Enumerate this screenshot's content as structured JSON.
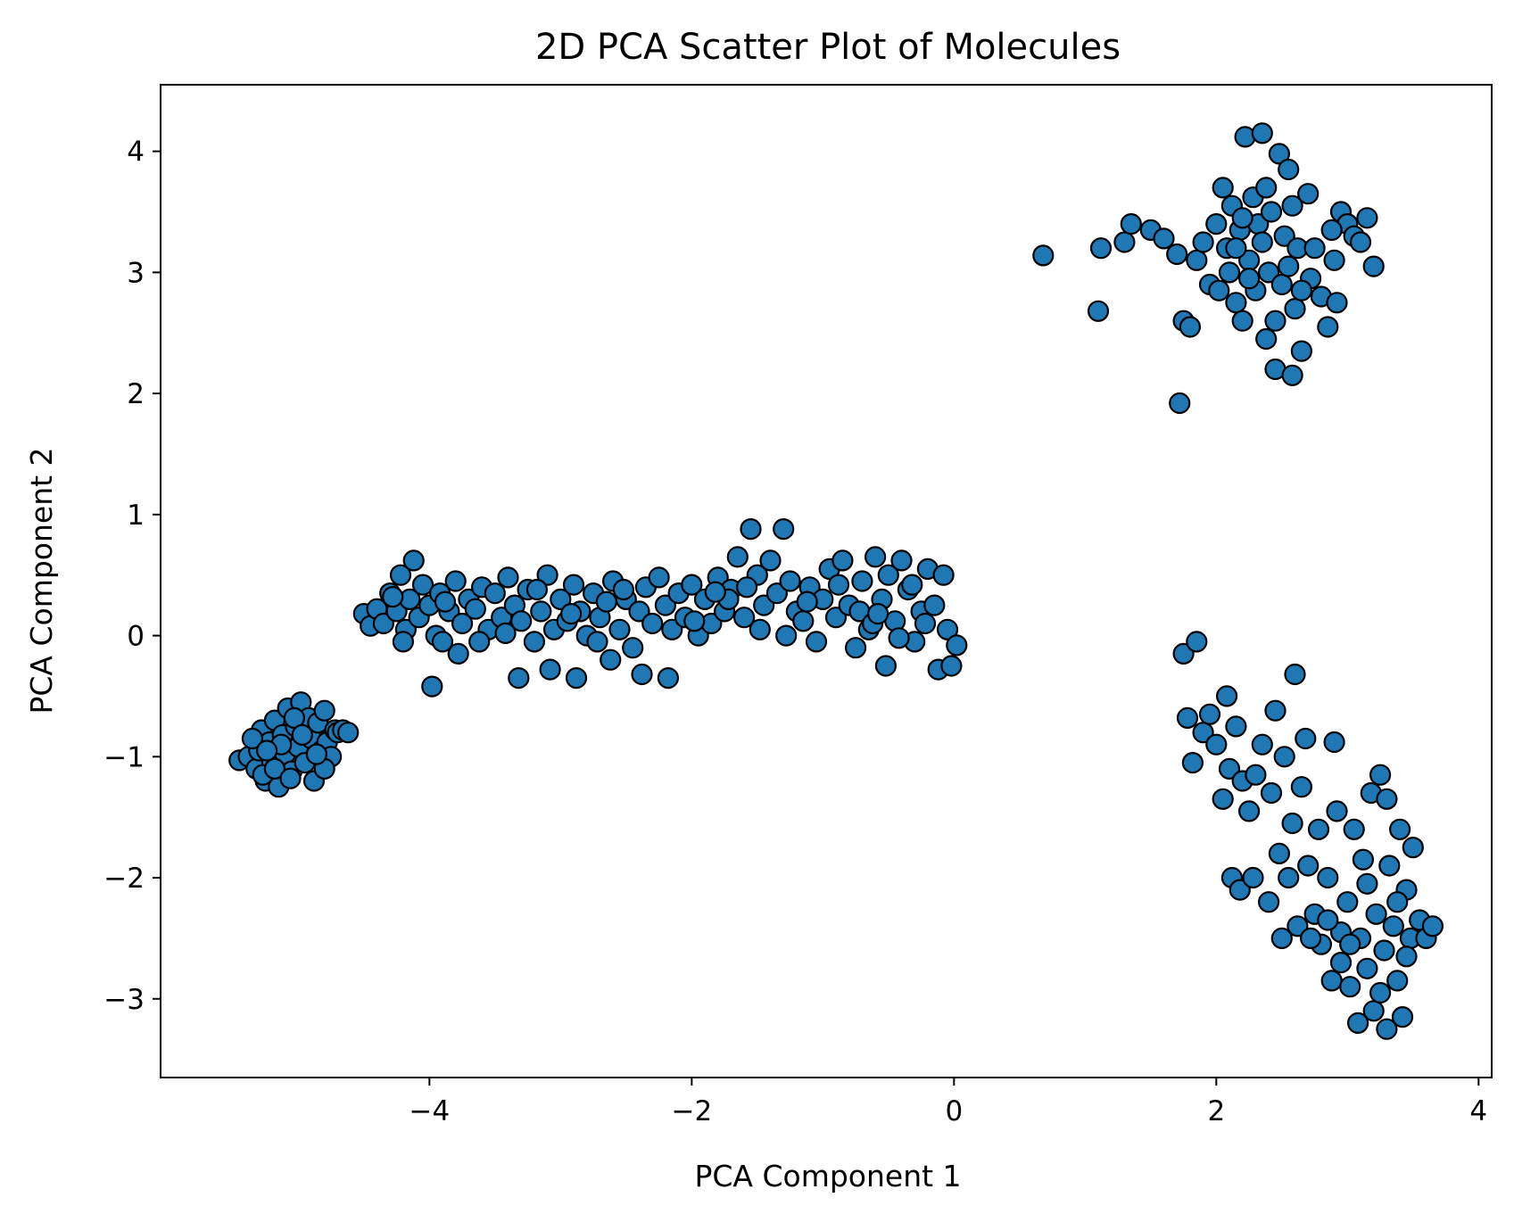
{
  "chart_data": {
    "type": "scatter",
    "title": "2D PCA Scatter Plot of Molecules",
    "xlabel": "PCA Component 1",
    "ylabel": "PCA Component 2",
    "xlim": [
      -6.05,
      4.1
    ],
    "ylim": [
      -3.65,
      4.55
    ],
    "xticks": [
      -4,
      -2,
      0,
      2,
      4
    ],
    "yticks": [
      -3,
      -2,
      -1,
      0,
      1,
      2,
      3,
      4
    ],
    "xtick_labels": [
      "−4",
      "−2",
      "0",
      "2",
      "4"
    ],
    "ytick_labels": [
      "−3",
      "−2",
      "−1",
      "0",
      "1",
      "2",
      "3",
      "4"
    ],
    "grid": false,
    "legend": "none",
    "marker_color": "#1f77b4",
    "marker_edge": "#000000",
    "series": [
      {
        "points": [
          [
            -5.45,
            -1.03
          ],
          [
            -5.38,
            -1.0
          ],
          [
            -5.32,
            -1.1
          ],
          [
            -5.3,
            -0.95
          ],
          [
            -5.28,
            -0.78
          ],
          [
            -5.25,
            -1.2
          ],
          [
            -5.22,
            -0.88
          ],
          [
            -5.2,
            -1.05
          ],
          [
            -5.18,
            -0.7
          ],
          [
            -5.15,
            -1.25
          ],
          [
            -5.12,
            -0.82
          ],
          [
            -5.1,
            -0.98
          ],
          [
            -5.08,
            -0.6
          ],
          [
            -5.05,
            -1.12
          ],
          [
            -5.02,
            -0.75
          ],
          [
            -5.0,
            -0.92
          ],
          [
            -4.98,
            -0.55
          ],
          [
            -4.95,
            -1.05
          ],
          [
            -4.92,
            -0.68
          ],
          [
            -4.9,
            -0.85
          ],
          [
            -4.88,
            -1.2
          ],
          [
            -4.85,
            -0.72
          ],
          [
            -4.82,
            -0.95
          ],
          [
            -4.8,
            -0.62
          ],
          [
            -4.78,
            -0.88
          ],
          [
            -4.75,
            -1.0
          ],
          [
            -4.72,
            -0.78
          ],
          [
            -4.7,
            -0.8
          ],
          [
            -4.66,
            -0.78
          ],
          [
            -4.62,
            -0.8
          ],
          [
            -4.8,
            -1.1
          ],
          [
            -5.35,
            -0.85
          ],
          [
            -5.27,
            -1.15
          ],
          [
            -5.13,
            -0.9
          ],
          [
            -5.03,
            -0.68
          ],
          [
            -4.97,
            -0.82
          ],
          [
            -5.18,
            -1.1
          ],
          [
            -5.24,
            -0.95
          ],
          [
            -4.86,
            -0.98
          ],
          [
            -5.06,
            -1.18
          ],
          [
            -4.5,
            0.18
          ],
          [
            -4.45,
            0.08
          ],
          [
            -4.4,
            0.22
          ],
          [
            -4.35,
            0.1
          ],
          [
            -4.3,
            0.35
          ],
          [
            -4.25,
            0.2
          ],
          [
            -4.22,
            0.5
          ],
          [
            -4.18,
            0.05
          ],
          [
            -4.15,
            0.3
          ],
          [
            -4.12,
            0.62
          ],
          [
            -4.08,
            0.15
          ],
          [
            -4.05,
            0.42
          ],
          [
            -4.0,
            0.25
          ],
          [
            -3.95,
            0.0
          ],
          [
            -3.92,
            0.35
          ],
          [
            -3.9,
            -0.05
          ],
          [
            -3.85,
            0.2
          ],
          [
            -3.8,
            0.45
          ],
          [
            -3.78,
            -0.15
          ],
          [
            -3.75,
            0.1
          ],
          [
            -3.7,
            0.3
          ],
          [
            -3.65,
            0.22
          ],
          [
            -3.6,
            0.4
          ],
          [
            -3.55,
            0.05
          ],
          [
            -3.5,
            0.35
          ],
          [
            -3.45,
            0.15
          ],
          [
            -3.4,
            0.48
          ],
          [
            -3.35,
            0.25
          ],
          [
            -3.3,
            0.12
          ],
          [
            -3.25,
            0.38
          ],
          [
            -3.2,
            -0.05
          ],
          [
            -3.15,
            0.2
          ],
          [
            -3.1,
            0.5
          ],
          [
            -3.05,
            0.05
          ],
          [
            -3.0,
            0.3
          ],
          [
            -2.95,
            0.12
          ],
          [
            -2.9,
            0.42
          ],
          [
            -2.85,
            0.2
          ],
          [
            -2.8,
            0.0
          ],
          [
            -2.75,
            0.35
          ],
          [
            -2.7,
            0.15
          ],
          [
            -2.65,
            0.28
          ],
          [
            -2.6,
            0.45
          ],
          [
            -2.55,
            0.05
          ],
          [
            -2.5,
            0.3
          ],
          [
            -2.45,
            -0.1
          ],
          [
            -2.4,
            0.2
          ],
          [
            -2.35,
            0.4
          ],
          [
            -2.3,
            0.1
          ],
          [
            -2.25,
            0.48
          ],
          [
            -2.2,
            0.25
          ],
          [
            -2.15,
            0.05
          ],
          [
            -2.1,
            0.35
          ],
          [
            -2.05,
            0.15
          ],
          [
            -2.0,
            0.42
          ],
          [
            -1.95,
            0.0
          ],
          [
            -1.9,
            0.3
          ],
          [
            -1.85,
            0.1
          ],
          [
            -1.8,
            0.48
          ],
          [
            -1.75,
            0.2
          ],
          [
            -1.7,
            0.38
          ],
          [
            -1.65,
            0.65
          ],
          [
            -1.6,
            0.15
          ],
          [
            -1.55,
            0.88
          ],
          [
            -1.5,
            0.5
          ],
          [
            -1.45,
            0.25
          ],
          [
            -1.4,
            0.62
          ],
          [
            -1.35,
            0.35
          ],
          [
            -1.3,
            0.88
          ],
          [
            -1.28,
            0.0
          ],
          [
            -1.25,
            0.45
          ],
          [
            -1.2,
            0.2
          ],
          [
            -1.15,
            0.12
          ],
          [
            -1.1,
            0.4
          ],
          [
            -1.05,
            -0.05
          ],
          [
            -1.0,
            0.3
          ],
          [
            -0.95,
            0.55
          ],
          [
            -0.9,
            0.15
          ],
          [
            -0.85,
            0.62
          ],
          [
            -0.8,
            0.25
          ],
          [
            -0.75,
            -0.1
          ],
          [
            -0.7,
            0.45
          ],
          [
            -0.65,
            0.05
          ],
          [
            -0.6,
            0.65
          ],
          [
            -0.55,
            0.3
          ],
          [
            -0.52,
            -0.25
          ],
          [
            -0.5,
            0.5
          ],
          [
            -0.45,
            0.12
          ],
          [
            -0.4,
            0.62
          ],
          [
            -0.35,
            0.38
          ],
          [
            -0.3,
            -0.05
          ],
          [
            -0.25,
            0.2
          ],
          [
            -0.2,
            0.55
          ],
          [
            -0.15,
            0.25
          ],
          [
            -0.12,
            -0.28
          ],
          [
            -0.08,
            0.5
          ],
          [
            -0.05,
            0.05
          ],
          [
            0.02,
            -0.08
          ],
          [
            -0.02,
            -0.25
          ],
          [
            -4.2,
            -0.05
          ],
          [
            -3.98,
            -0.42
          ],
          [
            -3.32,
            -0.35
          ],
          [
            -3.08,
            -0.28
          ],
          [
            -2.88,
            -0.35
          ],
          [
            -2.72,
            -0.05
          ],
          [
            -2.62,
            -0.2
          ],
          [
            -2.38,
            -0.32
          ],
          [
            -2.18,
            -0.35
          ],
          [
            -1.72,
            0.3
          ],
          [
            -1.58,
            0.4
          ],
          [
            -1.48,
            0.05
          ],
          [
            -0.72,
            0.2
          ],
          [
            -0.62,
            0.1
          ],
          [
            -0.42,
            -0.02
          ],
          [
            -3.62,
            -0.05
          ],
          [
            -3.88,
            0.28
          ],
          [
            -4.28,
            0.32
          ],
          [
            -2.92,
            0.18
          ],
          [
            -2.52,
            0.38
          ],
          [
            -1.98,
            0.12
          ],
          [
            -1.82,
            0.36
          ],
          [
            -1.12,
            0.28
          ],
          [
            -0.88,
            0.42
          ],
          [
            -0.58,
            0.18
          ],
          [
            -0.32,
            0.42
          ],
          [
            -0.22,
            0.1
          ],
          [
            -3.42,
            0.02
          ],
          [
            -3.18,
            0.38
          ],
          [
            1.1,
            2.68
          ],
          [
            0.68,
            3.14
          ],
          [
            1.12,
            3.2
          ],
          [
            1.3,
            3.25
          ],
          [
            1.35,
            3.4
          ],
          [
            1.5,
            3.35
          ],
          [
            1.6,
            3.28
          ],
          [
            1.7,
            3.15
          ],
          [
            1.75,
            2.6
          ],
          [
            1.8,
            2.55
          ],
          [
            1.72,
            1.92
          ],
          [
            1.85,
            3.1
          ],
          [
            1.9,
            3.25
          ],
          [
            1.95,
            2.9
          ],
          [
            2.0,
            3.4
          ],
          [
            2.02,
            2.85
          ],
          [
            2.05,
            3.7
          ],
          [
            2.08,
            3.2
          ],
          [
            2.1,
            3.0
          ],
          [
            2.12,
            3.55
          ],
          [
            2.15,
            2.75
          ],
          [
            2.18,
            3.35
          ],
          [
            2.2,
            2.6
          ],
          [
            2.22,
            4.12
          ],
          [
            2.25,
            3.1
          ],
          [
            2.28,
            3.62
          ],
          [
            2.3,
            2.85
          ],
          [
            2.32,
            3.4
          ],
          [
            2.35,
            4.15
          ],
          [
            2.38,
            2.45
          ],
          [
            2.4,
            3.0
          ],
          [
            2.42,
            3.5
          ],
          [
            2.45,
            2.2
          ],
          [
            2.48,
            3.98
          ],
          [
            2.5,
            2.9
          ],
          [
            2.52,
            3.3
          ],
          [
            2.55,
            3.85
          ],
          [
            2.58,
            2.15
          ],
          [
            2.6,
            2.7
          ],
          [
            2.62,
            3.2
          ],
          [
            2.65,
            2.35
          ],
          [
            2.7,
            3.65
          ],
          [
            2.72,
            2.95
          ],
          [
            2.75,
            3.2
          ],
          [
            2.8,
            2.8
          ],
          [
            2.85,
            2.55
          ],
          [
            2.9,
            3.1
          ],
          [
            2.95,
            3.5
          ],
          [
            3.0,
            3.4
          ],
          [
            3.05,
            3.3
          ],
          [
            3.1,
            3.25
          ],
          [
            3.15,
            3.45
          ],
          [
            3.2,
            3.05
          ],
          [
            2.88,
            3.35
          ],
          [
            2.92,
            2.75
          ],
          [
            2.15,
            3.2
          ],
          [
            2.25,
            2.95
          ],
          [
            2.35,
            3.25
          ],
          [
            2.45,
            2.6
          ],
          [
            2.55,
            3.05
          ],
          [
            2.65,
            2.85
          ],
          [
            2.2,
            3.45
          ],
          [
            2.38,
            3.7
          ],
          [
            2.58,
            3.55
          ],
          [
            1.75,
            -0.15
          ],
          [
            1.85,
            -0.05
          ],
          [
            1.78,
            -0.68
          ],
          [
            1.82,
            -1.05
          ],
          [
            1.9,
            -0.8
          ],
          [
            1.95,
            -0.65
          ],
          [
            2.0,
            -0.9
          ],
          [
            2.05,
            -1.35
          ],
          [
            2.08,
            -0.5
          ],
          [
            2.1,
            -1.1
          ],
          [
            2.12,
            -2.0
          ],
          [
            2.15,
            -0.75
          ],
          [
            2.18,
            -2.1
          ],
          [
            2.2,
            -1.2
          ],
          [
            2.25,
            -1.45
          ],
          [
            2.28,
            -2.0
          ],
          [
            2.3,
            -1.15
          ],
          [
            2.35,
            -0.9
          ],
          [
            2.4,
            -2.2
          ],
          [
            2.42,
            -1.3
          ],
          [
            2.45,
            -0.62
          ],
          [
            2.48,
            -1.8
          ],
          [
            2.5,
            -2.5
          ],
          [
            2.52,
            -1.0
          ],
          [
            2.55,
            -2.0
          ],
          [
            2.58,
            -1.55
          ],
          [
            2.6,
            -0.32
          ],
          [
            2.62,
            -2.4
          ],
          [
            2.65,
            -1.25
          ],
          [
            2.68,
            -0.85
          ],
          [
            2.7,
            -1.9
          ],
          [
            2.75,
            -2.3
          ],
          [
            2.78,
            -1.6
          ],
          [
            2.8,
            -2.55
          ],
          [
            2.85,
            -2.0
          ],
          [
            2.88,
            -2.85
          ],
          [
            2.9,
            -0.88
          ],
          [
            2.92,
            -1.45
          ],
          [
            2.95,
            -2.45
          ],
          [
            3.0,
            -2.2
          ],
          [
            3.02,
            -2.9
          ],
          [
            3.05,
            -1.6
          ],
          [
            3.08,
            -3.2
          ],
          [
            3.1,
            -2.5
          ],
          [
            3.12,
            -1.85
          ],
          [
            3.15,
            -2.75
          ],
          [
            3.18,
            -1.3
          ],
          [
            3.2,
            -3.1
          ],
          [
            3.22,
            -2.3
          ],
          [
            3.25,
            -1.15
          ],
          [
            3.28,
            -2.6
          ],
          [
            3.3,
            -3.25
          ],
          [
            3.32,
            -1.9
          ],
          [
            3.35,
            -2.4
          ],
          [
            3.38,
            -2.85
          ],
          [
            3.4,
            -1.6
          ],
          [
            3.42,
            -3.15
          ],
          [
            3.45,
            -2.1
          ],
          [
            3.48,
            -2.5
          ],
          [
            3.5,
            -1.75
          ],
          [
            3.55,
            -2.35
          ],
          [
            3.6,
            -2.5
          ],
          [
            3.65,
            -2.4
          ],
          [
            3.3,
            -1.35
          ],
          [
            3.02,
            -2.55
          ],
          [
            3.15,
            -2.05
          ],
          [
            2.72,
            -2.5
          ],
          [
            2.95,
            -2.7
          ],
          [
            3.25,
            -2.95
          ],
          [
            3.38,
            -2.2
          ],
          [
            3.45,
            -2.65
          ],
          [
            2.85,
            -2.35
          ]
        ]
      }
    ]
  }
}
